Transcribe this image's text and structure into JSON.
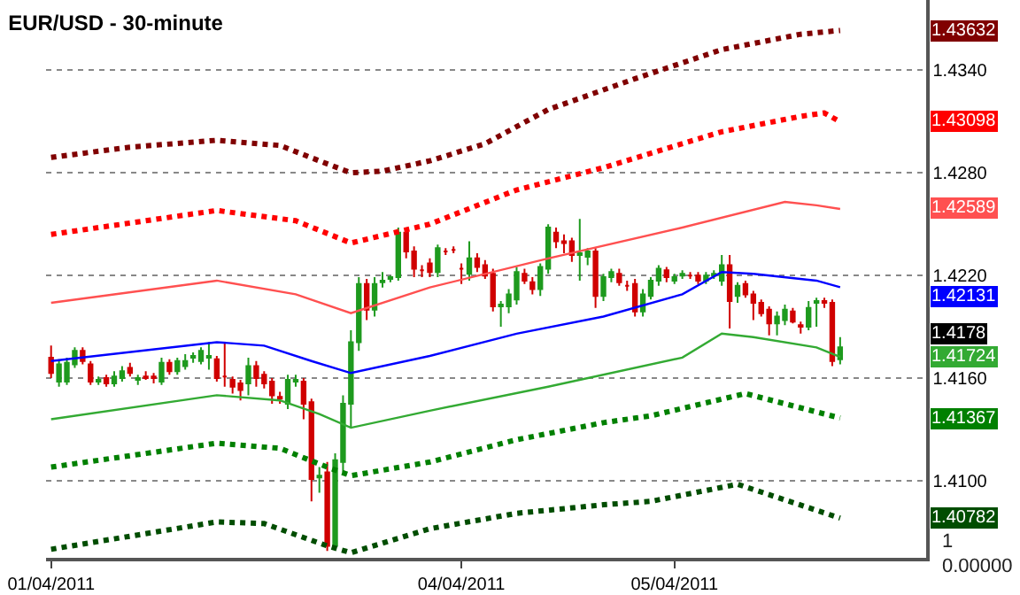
{
  "chart_data": {
    "type": "candlestick",
    "title": "EUR/USD - 30-minute",
    "categories": [
      "01/04/2011",
      null,
      null,
      null,
      null,
      null,
      null,
      null,
      null,
      null,
      null,
      null,
      null,
      null,
      null,
      null,
      null,
      null,
      null,
      null,
      null,
      null,
      null,
      null,
      null,
      null,
      null,
      null,
      null,
      null,
      null,
      null,
      null,
      null,
      null,
      null,
      null,
      null,
      null,
      null,
      null,
      null,
      null,
      null,
      null,
      null,
      null,
      null,
      null,
      null,
      null,
      null,
      "04/04/2011",
      null,
      null,
      null,
      null,
      null,
      null,
      null,
      null,
      null,
      null,
      null,
      null,
      null,
      null,
      null,
      null,
      null,
      null,
      null,
      null,
      null,
      null,
      null,
      null,
      null,
      null,
      "05/04/2011",
      null,
      null,
      null,
      null,
      null,
      null,
      null,
      null,
      null,
      null,
      null,
      null,
      null,
      null,
      null,
      null,
      null,
      null,
      null,
      null,
      null
    ],
    "series": [
      {
        "type": "line",
        "color": "#800000",
        "line_style": "dotted",
        "values": [
          1.4289,
          null,
          null,
          null,
          null,
          null,
          null,
          null,
          null,
          null,
          1.4295,
          null,
          null,
          null,
          null,
          null,
          null,
          null,
          null,
          null,
          null,
          1.4299,
          null,
          null,
          null,
          null,
          null,
          null,
          null,
          1.4296,
          null,
          null,
          null,
          null,
          1.4287,
          null,
          null,
          null,
          1.428,
          null,
          null,
          null,
          1.4281,
          null,
          null,
          null,
          null,
          null,
          1.4287,
          null,
          null,
          null,
          null,
          null,
          null,
          1.4297,
          null,
          null,
          null,
          null,
          null,
          null,
          null,
          1.4317,
          null,
          null,
          null,
          null,
          null,
          null,
          null,
          null,
          null,
          null,
          1.4335,
          null,
          null,
          null,
          null,
          null,
          null,
          null,
          null,
          null,
          null,
          1.4352,
          null,
          null,
          null,
          null,
          null,
          null,
          null,
          null,
          null,
          1.4361,
          null,
          null,
          null,
          null,
          1.43632
        ]
      },
      {
        "type": "line",
        "color": "#ff0000",
        "line_style": "dotted",
        "values": [
          1.4244,
          null,
          null,
          null,
          null,
          null,
          null,
          null,
          null,
          null,
          null,
          null,
          null,
          null,
          null,
          null,
          null,
          null,
          null,
          null,
          null,
          1.4258,
          null,
          null,
          null,
          null,
          null,
          null,
          null,
          null,
          null,
          1.4252,
          null,
          null,
          null,
          null,
          null,
          null,
          1.4239,
          null,
          null,
          null,
          null,
          null,
          null,
          null,
          null,
          null,
          1.425,
          null,
          null,
          null,
          null,
          null,
          null,
          null,
          null,
          null,
          null,
          1.427,
          null,
          null,
          null,
          null,
          null,
          null,
          null,
          null,
          null,
          null,
          1.4283,
          null,
          null,
          null,
          null,
          null,
          null,
          null,
          null,
          null,
          null,
          null,
          null,
          null,
          null,
          1.4304,
          null,
          null,
          null,
          null,
          null,
          null,
          null,
          null,
          null,
          1.4313,
          null,
          null,
          1.4315,
          null,
          1.43098
        ]
      },
      {
        "type": "line",
        "color": "#ff5050",
        "line_style": "solid",
        "values": [
          1.4204,
          null,
          null,
          null,
          null,
          null,
          null,
          null,
          null,
          null,
          null,
          null,
          null,
          null,
          null,
          null,
          null,
          null,
          null,
          null,
          null,
          1.4217,
          null,
          null,
          null,
          null,
          null,
          null,
          null,
          null,
          null,
          1.4209,
          null,
          null,
          null,
          null,
          null,
          null,
          1.4198,
          null,
          null,
          null,
          null,
          null,
          null,
          null,
          null,
          null,
          1.4213,
          null,
          null,
          null,
          null,
          null,
          null,
          null,
          null,
          null,
          null,
          null,
          null,
          null,
          null,
          1.423,
          null,
          null,
          null,
          null,
          null,
          null,
          null,
          null,
          null,
          null,
          null,
          null,
          null,
          null,
          null,
          null,
          1.4248,
          null,
          null,
          null,
          null,
          null,
          null,
          null,
          null,
          null,
          null,
          null,
          null,
          1.4263,
          null,
          null,
          null,
          1.4261,
          null,
          null,
          1.42589
        ]
      },
      {
        "type": "line",
        "color": "#0000ff",
        "line_style": "solid",
        "values": [
          1.417,
          null,
          null,
          null,
          null,
          null,
          null,
          null,
          null,
          null,
          null,
          null,
          null,
          null,
          null,
          null,
          null,
          null,
          null,
          null,
          null,
          1.4181,
          null,
          null,
          null,
          null,
          null,
          1.4179,
          null,
          null,
          null,
          null,
          null,
          1.417,
          null,
          null,
          null,
          null,
          1.4163,
          null,
          null,
          null,
          null,
          null,
          null,
          null,
          null,
          null,
          1.4173,
          null,
          null,
          null,
          null,
          null,
          null,
          null,
          null,
          null,
          null,
          1.4186,
          null,
          null,
          null,
          null,
          null,
          null,
          null,
          null,
          null,
          null,
          1.4196,
          null,
          null,
          null,
          null,
          null,
          null,
          null,
          null,
          null,
          1.4209,
          null,
          null,
          null,
          null,
          1.4222,
          null,
          null,
          null,
          1.4221,
          null,
          null,
          null,
          null,
          null,
          null,
          null,
          1.4217,
          null,
          null,
          1.42131
        ]
      },
      {
        "type": "line",
        "color": "#33aa33",
        "line_style": "solid",
        "values": [
          1.4136,
          null,
          null,
          null,
          null,
          null,
          null,
          null,
          null,
          null,
          null,
          null,
          null,
          null,
          null,
          null,
          null,
          null,
          null,
          null,
          null,
          1.415,
          null,
          null,
          null,
          null,
          null,
          null,
          null,
          1.4147,
          null,
          null,
          null,
          null,
          1.4139,
          null,
          null,
          null,
          1.4131,
          null,
          null,
          null,
          null,
          null,
          null,
          null,
          null,
          null,
          1.4141,
          null,
          null,
          null,
          null,
          null,
          null,
          null,
          null,
          null,
          null,
          null,
          null,
          null,
          null,
          1.4155,
          null,
          null,
          null,
          null,
          null,
          null,
          null,
          null,
          null,
          null,
          null,
          null,
          null,
          null,
          null,
          null,
          1.4172,
          null,
          null,
          null,
          null,
          1.4186,
          null,
          null,
          null,
          1.4184,
          null,
          null,
          null,
          null,
          null,
          null,
          null,
          1.4178,
          null,
          null,
          1.41724
        ]
      },
      {
        "type": "line",
        "color": "#008000",
        "line_style": "dotted",
        "values": [
          1.4108,
          null,
          null,
          null,
          null,
          null,
          null,
          null,
          null,
          null,
          null,
          null,
          null,
          null,
          null,
          null,
          null,
          null,
          null,
          null,
          null,
          1.4122,
          null,
          null,
          null,
          null,
          null,
          null,
          null,
          1.4119,
          null,
          null,
          null,
          null,
          null,
          1.4108,
          null,
          null,
          1.4103,
          null,
          null,
          null,
          null,
          null,
          null,
          null,
          null,
          null,
          1.4111,
          null,
          null,
          null,
          null,
          null,
          null,
          null,
          null,
          null,
          null,
          1.4124,
          null,
          null,
          null,
          null,
          null,
          null,
          null,
          null,
          null,
          null,
          1.4134,
          null,
          null,
          null,
          null,
          null,
          1.4138,
          null,
          null,
          null,
          null,
          null,
          null,
          null,
          null,
          null,
          null,
          null,
          1.4151,
          null,
          null,
          null,
          null,
          null,
          null,
          null,
          null,
          null,
          null,
          null,
          1.41367
        ]
      },
      {
        "type": "line",
        "color": "#004d00",
        "line_style": "dotted",
        "values": [
          1.406,
          null,
          null,
          null,
          null,
          null,
          null,
          null,
          null,
          null,
          null,
          null,
          null,
          null,
          null,
          null,
          null,
          null,
          null,
          null,
          null,
          1.4076,
          null,
          null,
          null,
          null,
          null,
          1.4075,
          null,
          null,
          null,
          null,
          null,
          null,
          null,
          1.4062,
          null,
          null,
          1.4058,
          null,
          null,
          null,
          null,
          null,
          null,
          null,
          null,
          null,
          1.4072,
          null,
          null,
          null,
          null,
          null,
          null,
          null,
          null,
          null,
          null,
          1.4081,
          null,
          null,
          null,
          null,
          null,
          null,
          null,
          null,
          null,
          null,
          1.4086,
          null,
          null,
          null,
          null,
          null,
          1.4088,
          null,
          null,
          null,
          null,
          null,
          null,
          null,
          null,
          null,
          null,
          1.4098,
          null,
          null,
          null,
          null,
          null,
          null,
          null,
          null,
          null,
          null,
          null,
          null,
          1.40782
        ]
      },
      {
        "colors": [
          "#d00000",
          "#1e9a1e",
          "#1e9a1e",
          "#1e9a1e",
          "#d00000",
          "#d00000",
          "#1e9a1e",
          "#d00000",
          "#1e9a1e",
          "#1e9a1e",
          "#d00000",
          "#1e9a1e",
          "#d00000",
          "#d00000",
          "#1e9a1e",
          "#d00000",
          "#1e9a1e",
          "#1e9a1e",
          "#1e9a1e",
          "#1e9a1e",
          "#1e9a1e",
          "#d00000",
          "#d00000",
          "#d00000",
          "#d00000",
          "#1e9a1e",
          "#d00000",
          "#d00000",
          "#d00000",
          "#d00000",
          "#1e9a1e",
          "#1e9a1e",
          "#d00000",
          "#d00000",
          "#1e9a1e",
          "#d00000",
          "#1e9a1e",
          "#1e9a1e",
          "#1e9a1e",
          "#1e9a1e",
          "#d00000",
          "#1e9a1e",
          "#1e9a1e",
          "#1e9a1e",
          "#1e9a1e",
          "#d00000",
          "#d00000",
          "#d00000",
          "#d00000",
          "#1e9a1e",
          "#d00000",
          "#d00000",
          "#d00000",
          "#1e9a1e",
          "#d00000",
          "#d00000",
          "#d00000",
          "#1e9a1e",
          "#1e9a1e",
          "#1e9a1e",
          "#d00000",
          "#d00000",
          "#1e9a1e",
          "#1e9a1e",
          "#d00000",
          "#d00000",
          "#d00000",
          "#1e9a1e",
          "#1e9a1e",
          "#d00000",
          "#1e9a1e",
          "#1e9a1e",
          "#d00000",
          "#d00000",
          "#d00000",
          "#1e9a1e",
          "#1e9a1e",
          "#1e9a1e",
          "#d00000",
          "#1e9a1e",
          "#1e9a1e",
          "#d00000",
          "#d00000",
          "#1e9a1e",
          "#1e9a1e",
          "#1e9a1e",
          "#d00000",
          "#1e9a1e",
          "#d00000",
          "#d00000",
          "#d00000",
          "#d00000",
          "#1e9a1e",
          "#1e9a1e",
          "#d00000",
          "#d00000",
          "#1e9a1e",
          "#1e9a1e",
          "#d00000",
          "#d00000",
          "#1e9a1e"
        ],
        "ohlc": [
          [
            1.4172,
            1.4179,
            1.416,
            1.4163
          ],
          [
            1.4158,
            1.4171,
            1.4155,
            1.4168
          ],
          [
            1.4158,
            1.4172,
            1.4156,
            1.4169
          ],
          [
            1.4168,
            1.4178,
            1.4166,
            1.4176
          ],
          [
            1.4176,
            1.4178,
            1.4168,
            1.417
          ],
          [
            1.4168,
            1.417,
            1.4156,
            1.4158
          ],
          [
            1.4158,
            1.4161,
            1.4156,
            1.4159
          ],
          [
            1.416,
            1.4162,
            1.4155,
            1.4157
          ],
          [
            1.4157,
            1.4164,
            1.4155,
            1.4161
          ],
          [
            1.416,
            1.4167,
            1.4158,
            1.4164
          ],
          [
            1.4166,
            1.4169,
            1.4161,
            1.4163
          ],
          [
            1.4159,
            1.4162,
            1.4156,
            1.416
          ],
          [
            1.4161,
            1.4164,
            1.4159,
            1.416
          ],
          [
            1.4161,
            1.4163,
            1.4157,
            1.416
          ],
          [
            1.4158,
            1.4172,
            1.4156,
            1.4169
          ],
          [
            1.4169,
            1.4171,
            1.4162,
            1.4164
          ],
          [
            1.4164,
            1.4172,
            1.4162,
            1.417
          ],
          [
            1.4167,
            1.4174,
            1.4165,
            1.417
          ],
          [
            1.4172,
            1.4175,
            1.4169,
            1.4173
          ],
          [
            1.417,
            1.4178,
            1.4168,
            1.4176
          ],
          [
            1.4172,
            1.4181,
            1.4165,
            1.4173
          ],
          [
            1.4171,
            1.4173,
            1.4158,
            1.416
          ],
          [
            1.4161,
            1.4181,
            1.4155,
            1.4161
          ],
          [
            1.4159,
            1.4161,
            1.4151,
            1.4155
          ],
          [
            1.4157,
            1.4159,
            1.4147,
            1.4153
          ],
          [
            1.4157,
            1.4172,
            1.415,
            1.4167
          ],
          [
            1.4167,
            1.417,
            1.4155,
            1.416
          ],
          [
            1.4162,
            1.4164,
            1.4154,
            1.4157
          ],
          [
            1.4158,
            1.416,
            1.4145,
            1.415
          ],
          [
            1.4149,
            1.4152,
            1.4145,
            1.4148
          ],
          [
            1.4145,
            1.4162,
            1.4142,
            1.4159
          ],
          [
            1.4158,
            1.4162,
            1.4155,
            1.4159
          ],
          [
            1.4158,
            1.416,
            1.4136,
            1.4145
          ],
          [
            1.4146,
            1.4148,
            1.4088,
            1.4101
          ],
          [
            1.4102,
            1.4108,
            1.4093,
            1.4103
          ],
          [
            1.4105,
            1.4111,
            1.4059,
            1.4062
          ],
          [
            1.4062,
            1.4116,
            1.406,
            1.4112
          ],
          [
            1.4111,
            1.415,
            1.4105,
            1.4145
          ],
          [
            1.4145,
            1.4188,
            1.4131,
            1.4181
          ],
          [
            1.4181,
            1.4219,
            1.4176,
            1.4215
          ],
          [
            1.4215,
            1.4218,
            1.4194,
            1.42
          ],
          [
            1.42,
            1.4219,
            1.4196,
            1.4215
          ],
          [
            1.4216,
            1.4222,
            1.4213,
            1.4217
          ],
          [
            1.4218,
            1.422,
            1.4216,
            1.4219
          ],
          [
            1.4219,
            1.4248,
            1.4217,
            1.4245
          ],
          [
            1.4245,
            1.4248,
            1.423,
            1.4234
          ],
          [
            1.4234,
            1.4237,
            1.4219,
            1.4224
          ],
          [
            1.4223,
            1.4226,
            1.4219,
            1.4223
          ],
          [
            1.4227,
            1.423,
            1.4219,
            1.4222
          ],
          [
            1.4222,
            1.4238,
            1.4219,
            1.4236
          ],
          [
            1.4234,
            1.4236,
            1.4232,
            1.4234
          ],
          [
            1.4235,
            1.4237,
            1.4233,
            1.4235
          ],
          [
            1.4224,
            1.4227,
            1.4215,
            1.4224
          ],
          [
            1.4221,
            1.424,
            1.4217,
            1.423
          ],
          [
            1.423,
            1.4233,
            1.4222,
            1.4225
          ],
          [
            1.4226,
            1.4229,
            1.4218,
            1.422
          ],
          [
            1.4221,
            1.4224,
            1.4199,
            1.4202
          ],
          [
            1.4202,
            1.4205,
            1.419,
            1.4203
          ],
          [
            1.4202,
            1.4212,
            1.4198,
            1.4209
          ],
          [
            1.4206,
            1.4225,
            1.4203,
            1.4222
          ],
          [
            1.4221,
            1.4224,
            1.4215,
            1.4217
          ],
          [
            1.4216,
            1.4219,
            1.4209,
            1.4212
          ],
          [
            1.4212,
            1.4227,
            1.4208,
            1.4225
          ],
          [
            1.4224,
            1.425,
            1.4221,
            1.4248
          ],
          [
            1.4245,
            1.4248,
            1.4236,
            1.424
          ],
          [
            1.424,
            1.4244,
            1.4233,
            1.4239
          ],
          [
            1.424,
            1.4242,
            1.4228,
            1.4232
          ],
          [
            1.4232,
            1.4253,
            1.4217,
            1.4233
          ],
          [
            1.4231,
            1.4236,
            1.4226,
            1.4234
          ],
          [
            1.4234,
            1.4236,
            1.4201,
            1.4208
          ],
          [
            1.4208,
            1.4221,
            1.4205,
            1.4219
          ],
          [
            1.4219,
            1.4224,
            1.4216,
            1.4222
          ],
          [
            1.4221,
            1.4224,
            1.4214,
            1.4216
          ],
          [
            1.4214,
            1.4217,
            1.4211,
            1.4214
          ],
          [
            1.4215,
            1.4218,
            1.4196,
            1.4199
          ],
          [
            1.4199,
            1.4212,
            1.4196,
            1.4209
          ],
          [
            1.4208,
            1.4219,
            1.4206,
            1.4217
          ],
          [
            1.4217,
            1.4226,
            1.4214,
            1.4224
          ],
          [
            1.4223,
            1.4225,
            1.4216,
            1.4219
          ],
          [
            1.4217,
            1.4221,
            1.4215,
            1.4219
          ],
          [
            1.422,
            1.4223,
            1.4218,
            1.4221
          ],
          [
            1.422,
            1.4222,
            1.4218,
            1.422
          ],
          [
            1.422,
            1.4222,
            1.4215,
            1.4217
          ],
          [
            1.4217,
            1.4222,
            1.4215,
            1.422
          ],
          [
            1.422,
            1.4223,
            1.4218,
            1.4221
          ],
          [
            1.4217,
            1.4232,
            1.4214,
            1.4226
          ],
          [
            1.4226,
            1.4232,
            1.4189,
            1.4205
          ],
          [
            1.4208,
            1.4216,
            1.4204,
            1.4214
          ],
          [
            1.4215,
            1.4217,
            1.4207,
            1.4209
          ],
          [
            1.4209,
            1.4211,
            1.4194,
            1.4204
          ],
          [
            1.4204,
            1.4206,
            1.4196,
            1.4198
          ],
          [
            1.42,
            1.4202,
            1.4185,
            1.4192
          ],
          [
            1.4192,
            1.4199,
            1.4185,
            1.4196
          ],
          [
            1.4194,
            1.4203,
            1.4191,
            1.42
          ],
          [
            1.4199,
            1.4201,
            1.4192,
            1.4193
          ],
          [
            1.4191,
            1.4193,
            1.4186,
            1.419
          ],
          [
            1.419,
            1.4205,
            1.4188,
            1.4201
          ],
          [
            1.4204,
            1.4207,
            1.419,
            1.4205
          ],
          [
            1.4205,
            1.4207,
            1.4201,
            1.4204
          ],
          [
            1.4204,
            1.4206,
            1.4167,
            1.417
          ],
          [
            1.4171,
            1.4184,
            1.4168,
            1.4178
          ]
        ]
      }
    ],
    "ylim": [
      1.4055,
      1.4381
    ],
    "yticks": [
      {
        "value": 1.434,
        "label": "1.4340"
      },
      {
        "value": 1.428,
        "label": "1.4280"
      },
      {
        "value": 1.422,
        "label": "1.4220"
      },
      {
        "value": 1.416,
        "label": "1.4160"
      },
      {
        "value": 1.41,
        "label": "1.4100"
      }
    ],
    "grid": "y",
    "annotations": [
      "1.43632",
      "1.43098",
      "1.42589",
      "1.42131",
      "1.41724",
      "1.41367",
      "1.40782",
      "1.4178",
      "1",
      "0.00000"
    ]
  }
}
